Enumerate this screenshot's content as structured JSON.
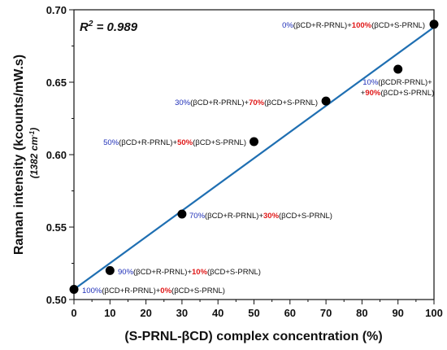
{
  "chart_data": {
    "type": "scatter",
    "xlabel": "(S-PRNL-βCD) complex concentration (%)",
    "ylabel": "Raman intensity (kcounts/mW.s)",
    "ylabel_sub": "(1382 cm⁻¹)",
    "xlim": [
      0,
      100
    ],
    "ylim": [
      0.5,
      0.7
    ],
    "x_ticks": [
      "0",
      "10",
      "20",
      "30",
      "40",
      "50",
      "60",
      "70",
      "80",
      "90",
      "100"
    ],
    "y_ticks": [
      "0.50",
      "0.55",
      "0.60",
      "0.65",
      "0.70"
    ],
    "r_squared_label": "R² = 0.989",
    "fit_line": {
      "x": [
        0,
        100
      ],
      "y": [
        0.507,
        0.688
      ],
      "color": "#1f6fb2"
    },
    "marker_color": "#000000",
    "highlight_colors": {
      "r_percent": "#1f2fb8",
      "s_percent": "#e01818"
    },
    "points": [
      {
        "x": 0,
        "y": 0.507,
        "r_pct": "100%",
        "s_pct": "0%",
        "r_text": "(βCD+R-PRNL)+",
        "s_text": "(βCD+S-PRNL)"
      },
      {
        "x": 10,
        "y": 0.52,
        "r_pct": "90%",
        "s_pct": "10%",
        "r_text": "(βCD+R-PRNL)+",
        "s_text": "(βCD+S-PRNL)"
      },
      {
        "x": 30,
        "y": 0.559,
        "r_pct": "70%",
        "s_pct": "30%",
        "r_text": "(βCD+R-PRNL)+",
        "s_text": "(βCD+S-PRNL)"
      },
      {
        "x": 50,
        "y": 0.609,
        "r_pct": "50%",
        "s_pct": "50%",
        "r_text": "(βCD+R-PRNL)+",
        "s_text": "(βCD+S-PRNL)"
      },
      {
        "x": 70,
        "y": 0.637,
        "r_pct": "30%",
        "s_pct": "70%",
        "r_text": "(βCD+R-PRNL)+",
        "s_text": "(βCD+S-PRNL)"
      },
      {
        "x": 90,
        "y": 0.659,
        "r_pct": "10%",
        "s_pct": "90%",
        "r_text": "(βCD+R-PRNL)+",
        "s_text": "(βCD+S-PRNL)"
      },
      {
        "x": 100,
        "y": 0.69,
        "r_pct": "0%",
        "s_pct": "100%",
        "r_text": "(βCD+R-PRNL)+",
        "s_text": "(βCD+S-PRNL)"
      }
    ]
  }
}
